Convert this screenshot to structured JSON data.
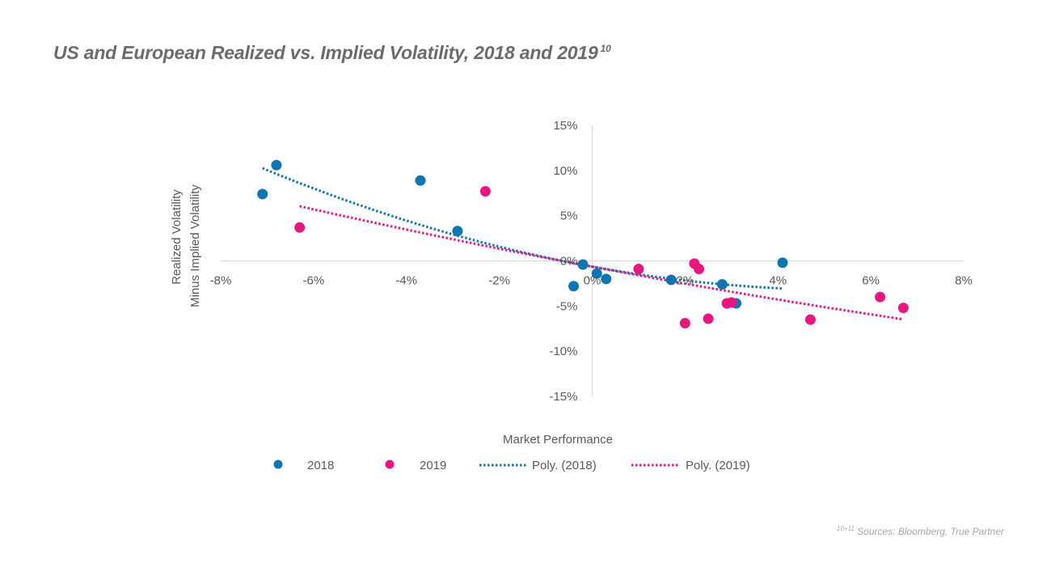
{
  "title": "US and European Realized vs. Implied Volatility, 2018 and 2019",
  "title_sup": "10",
  "source_sup": "10+11",
  "source_text": "Sources: Bloomberg, True Partner",
  "colors": {
    "s2018": "#0f75b0",
    "s2019": "#e8177f",
    "axis": "#d9d9d9",
    "text": "#595959"
  },
  "chart_data": {
    "type": "scatter",
    "title": "",
    "xlabel": "Market Performance",
    "ylabel_lines": [
      "Realized Volatility",
      "Minus Implied Volatility"
    ],
    "xlim": [
      -0.08,
      0.08
    ],
    "ylim": [
      -0.15,
      0.15
    ],
    "x_ticks": [
      -0.08,
      -0.06,
      -0.04,
      -0.02,
      0,
      0.02,
      0.04,
      0.06,
      0.08
    ],
    "x_tick_labels": [
      "-8%",
      "-6%",
      "-4%",
      "-2%",
      "0%",
      "2%",
      "4%",
      "6%",
      "8%"
    ],
    "y_ticks": [
      0.15,
      0.1,
      0.05,
      0,
      -0.05,
      -0.1,
      -0.15
    ],
    "y_tick_labels": [
      "15%",
      "10%",
      "5%",
      "0%",
      "-5%",
      "-10%",
      "-15%"
    ],
    "grid": false,
    "legend_position": "bottom",
    "series": [
      {
        "name": "2018",
        "points": [
          [
            -0.071,
            0.074
          ],
          [
            -0.068,
            0.106
          ],
          [
            -0.037,
            0.089
          ],
          [
            -0.029,
            0.033
          ],
          [
            -0.004,
            -0.028
          ],
          [
            -0.002,
            -0.004
          ],
          [
            0.001,
            -0.014
          ],
          [
            0.003,
            -0.02
          ],
          [
            0.017,
            -0.021
          ],
          [
            0.028,
            -0.026
          ],
          [
            0.031,
            -0.047
          ],
          [
            0.041,
            -0.002
          ]
        ]
      },
      {
        "name": "2019",
        "points": [
          [
            -0.063,
            0.037
          ],
          [
            -0.023,
            0.077
          ],
          [
            0.01,
            -0.009
          ],
          [
            0.02,
            -0.069
          ],
          [
            0.022,
            -0.003
          ],
          [
            0.023,
            -0.009
          ],
          [
            0.025,
            -0.064
          ],
          [
            0.029,
            -0.047
          ],
          [
            0.03,
            -0.046
          ],
          [
            0.047,
            -0.065
          ],
          [
            0.062,
            -0.04
          ],
          [
            0.067,
            -0.052
          ]
        ]
      }
    ],
    "trendlines": [
      {
        "name": "Poly. (2018)",
        "type": "poly2",
        "coef": [
          0.0068,
          -1.3,
          2.5
        ],
        "x_range": [
          -0.071,
          0.041
        ]
      },
      {
        "name": "Poly. (2019)",
        "type": "poly2",
        "coef": [
          0.006,
          -0.93,
          1.0
        ],
        "x_range": [
          -0.063,
          0.067
        ]
      }
    ],
    "legend": [
      "2018",
      "2019",
      "Poly. (2018)",
      "Poly. (2019)"
    ]
  }
}
